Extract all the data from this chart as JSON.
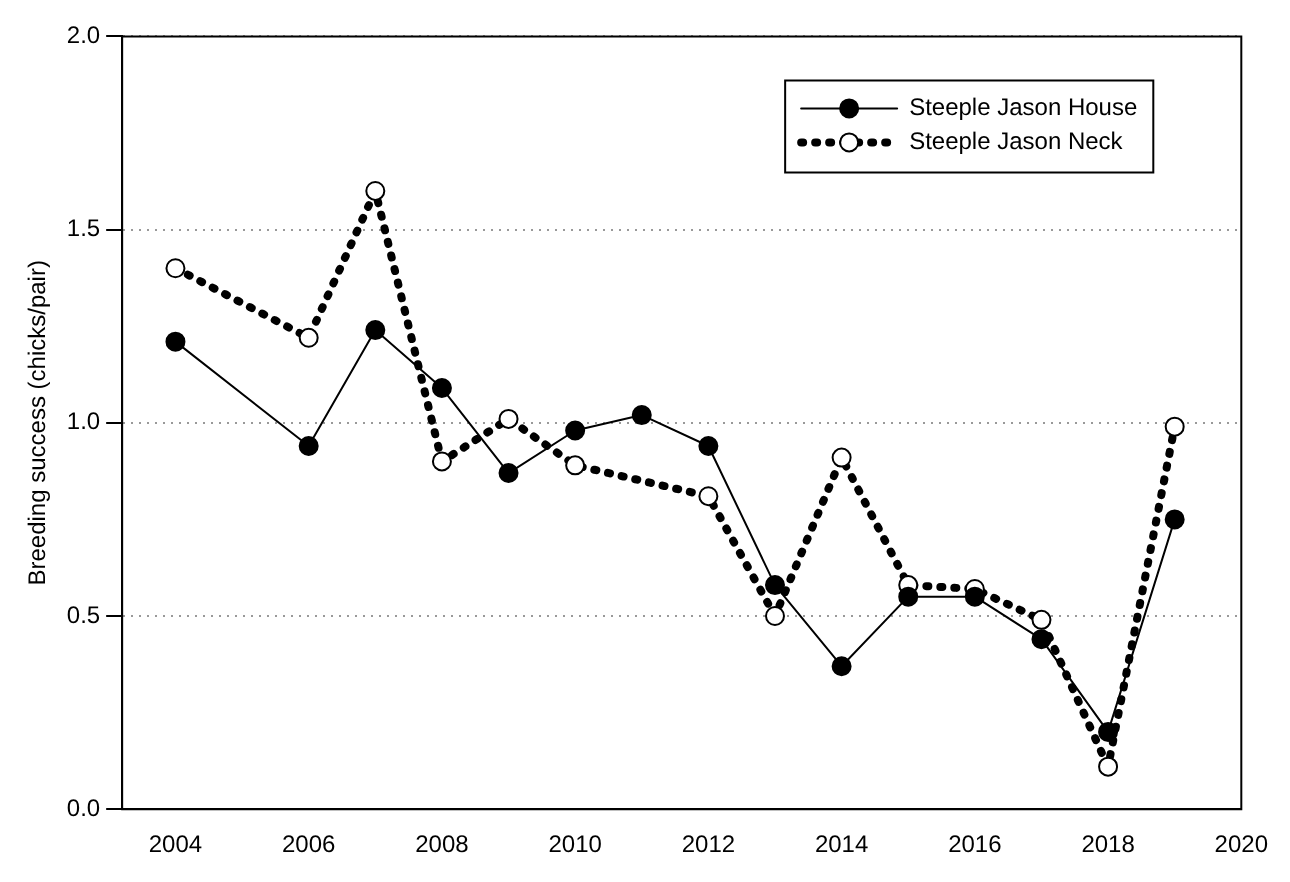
{
  "chart_data": {
    "type": "line",
    "ylabel": "Breeding success (chicks/pair)",
    "xlim": [
      2003.2,
      2020
    ],
    "xticks": [
      2004,
      2006,
      2008,
      2010,
      2012,
      2014,
      2016,
      2018,
      2020
    ],
    "ylim": [
      0,
      2
    ],
    "yticks": [
      {
        "value": 0,
        "label": "0.0"
      },
      {
        "value": 0.5,
        "label": "0.5"
      },
      {
        "value": 1,
        "label": "1.0"
      },
      {
        "value": 1.5,
        "label": "1.5"
      },
      {
        "value": 2,
        "label": "2.0"
      }
    ],
    "grid": "y",
    "legend": "top right",
    "marker": "circle",
    "series": [
      {
        "name": "Steeple Jason House",
        "color": "#000000",
        "line_style": "solid",
        "x": [
          2004,
          2006,
          2007,
          2008,
          2009,
          2010,
          2011,
          2012,
          2013,
          2014,
          2015,
          2016,
          2017,
          2018,
          2019
        ],
        "values": [
          1.21,
          0.94,
          1.24,
          1.09,
          0.87,
          0.98,
          1.02,
          0.94,
          0.58,
          0.37,
          0.55,
          0.55,
          0.44,
          0.2,
          0.75
        ]
      },
      {
        "name": "Steeple Jason Neck",
        "color": "#000000",
        "line_style": "dotted",
        "x": [
          2004,
          2006,
          2007,
          2008,
          2009,
          2010,
          2012,
          2013,
          2014,
          2015,
          2016,
          2017,
          2018,
          2019
        ],
        "values": [
          1.4,
          1.22,
          1.6,
          0.9,
          1.01,
          0.89,
          0.81,
          0.5,
          0.91,
          0.58,
          0.57,
          0.49,
          0.11,
          0.99
        ]
      }
    ]
  }
}
